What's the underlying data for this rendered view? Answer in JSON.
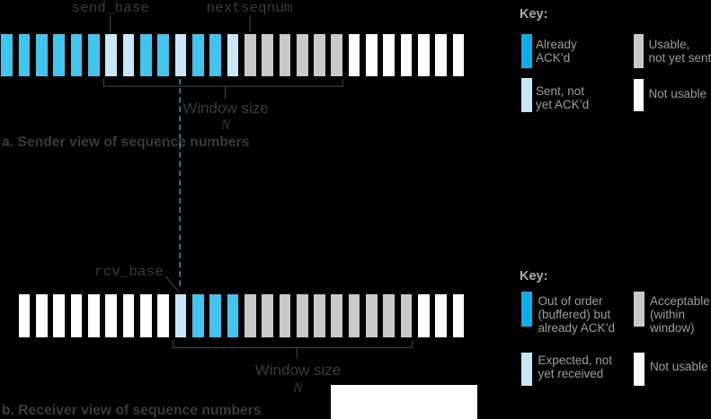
{
  "colors": {
    "background": "#000000",
    "figure_text": "#3a3a3d",
    "key_text": "#9d9d9d",
    "key_title_text": "#a9a9a9",
    "line": "#3e3e41",
    "dashed_line": "#2aa2da",
    "white_patch": "#ffffff"
  },
  "palette": {
    "acked": "#41c5ee",
    "sent": "#c7e7f9",
    "usable": "#c9c9c9",
    "not_usable": "#ffffff",
    "out_of_order": "#41c5ee",
    "expected": "#c7e7f9",
    "acceptable": "#c9c9c9",
    "key_acked": "#0fade5",
    "key_out_of_order": "#0fade5"
  },
  "sender": {
    "send_base_label": "send_base",
    "nextseqnum_label": "nextseqnum",
    "window_size_label": "Window size",
    "window_size_n": "N",
    "caption": "a. Sender view of sequence numbers",
    "bars": [
      "acked",
      "acked",
      "acked",
      "acked",
      "acked",
      "acked",
      "sent",
      "sent",
      "acked",
      "acked",
      "sent",
      "acked",
      "acked",
      "sent",
      "usable",
      "usable",
      "usable",
      "usable",
      "usable",
      "usable",
      "not_usable",
      "not_usable",
      "not_usable",
      "not_usable",
      "not_usable",
      "not_usable",
      "not_usable"
    ]
  },
  "receiver": {
    "rcv_base_label": "rcv_base",
    "window_size_label": "Window size",
    "window_size_n": "N",
    "caption": "b. Receiver view of sequence numbers",
    "bars": [
      "not_usable",
      "not_usable",
      "not_usable",
      "not_usable",
      "not_usable",
      "not_usable",
      "not_usable",
      "not_usable",
      "not_usable",
      "expected",
      "out_of_order",
      "out_of_order",
      "out_of_order",
      "acceptable",
      "acceptable",
      "acceptable",
      "acceptable",
      "acceptable",
      "acceptable",
      "acceptable",
      "acceptable",
      "acceptable",
      "acceptable",
      "not_usable",
      "not_usable",
      "not_usable"
    ]
  },
  "sender_key": {
    "title": "Key:",
    "items": [
      {
        "swatch": "key_acked",
        "label": "Already\nACK’d"
      },
      {
        "swatch": "usable",
        "label": "Usable,\nnot yet sent"
      },
      {
        "swatch": "sent",
        "label": "Sent, not\nyet ACK’d"
      },
      {
        "swatch": "not_usable",
        "label": "Not usable"
      }
    ]
  },
  "receiver_key": {
    "title": "Key:",
    "items": [
      {
        "swatch": "key_out_of_order",
        "label": "Out of order\n(buffered) but\nalready ACK’d"
      },
      {
        "swatch": "acceptable",
        "label": "Acceptable\n(within\nwindow)"
      },
      {
        "swatch": "expected",
        "label": "Expected, not\nyet received"
      },
      {
        "swatch": "not_usable",
        "label": "Not usable"
      }
    ]
  }
}
